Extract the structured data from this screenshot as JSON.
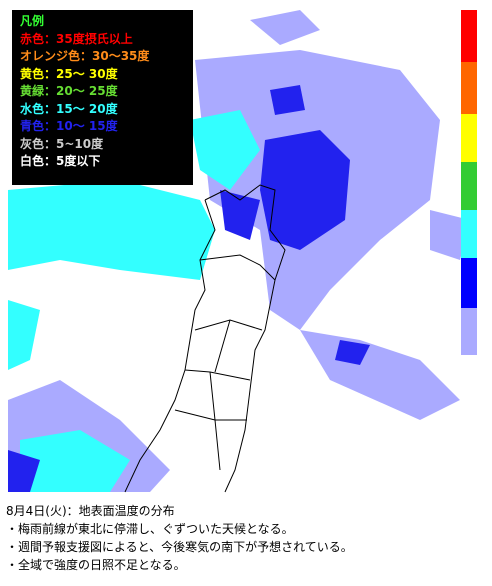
{
  "legend": {
    "title": "凡例",
    "items": [
      {
        "label": "赤色：35度摂氏以上",
        "color": "#ff0000"
      },
      {
        "label": "オレンジ色：30～35度",
        "color": "#ff8c1a"
      },
      {
        "label": "黄色：25～ 30度",
        "color": "#ffff00"
      },
      {
        "label": "黄緑：20～ 25度",
        "color": "#66dd33"
      },
      {
        "label": "水色：15～ 20度",
        "color": "#33ffff"
      },
      {
        "label": "青色：10～ 15度",
        "color": "#2222ee"
      },
      {
        "label": "灰色：5~10度",
        "color": "#cccccc"
      },
      {
        "label": "白色：5度以下",
        "color": "#ffffff"
      }
    ]
  },
  "caption": {
    "title": "8月4日(火)：地表面温度の分布",
    "notes": [
      "・梅雨前線が東北に停滞し、ぐずついた天候となる。",
      "・週間予報支援図によると、今後寒気の南下が予想されている。",
      "・全域で強度の日照不足となる。"
    ]
  }
}
